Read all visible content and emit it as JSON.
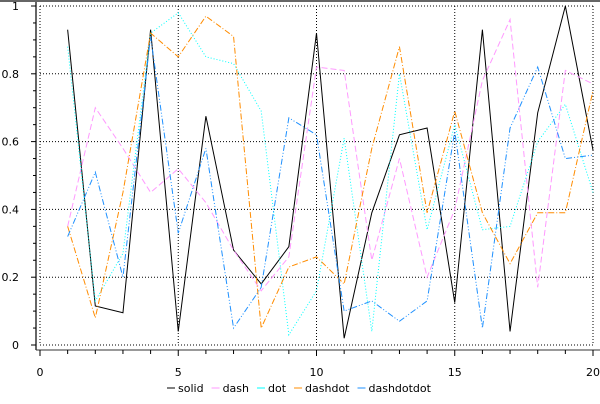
{
  "chart_data": {
    "type": "line",
    "title": "",
    "xlabel": "",
    "ylabel": "",
    "xlim": [
      0,
      20
    ],
    "ylim": [
      0,
      1
    ],
    "xticks": [
      0,
      5,
      10,
      15,
      20
    ],
    "yticks": [
      0,
      0.2,
      0.4,
      0.6,
      0.8,
      1
    ],
    "xtick_labels": [
      "0",
      "5",
      "10",
      "15",
      "20"
    ],
    "ytick_labels": [
      "0",
      "0.2",
      "0.4",
      "0.6",
      "0.8",
      "1"
    ],
    "grid": true,
    "legend_position": "bottom",
    "x": [
      1,
      2,
      3,
      4,
      5,
      6,
      7,
      8,
      9,
      10,
      11,
      12,
      13,
      14,
      15,
      16,
      17,
      18,
      19,
      20
    ],
    "series": [
      {
        "name": "solid",
        "color": "#000000",
        "dash": "solid",
        "values": [
          0.93,
          0.115,
          0.095,
          0.93,
          0.04,
          0.675,
          0.28,
          0.18,
          0.29,
          0.92,
          0.02,
          0.39,
          0.62,
          0.64,
          0.125,
          0.93,
          0.04,
          0.685,
          1.0,
          0.575
        ]
      },
      {
        "name": "dash",
        "color": "#ff99ff",
        "dash": "dash",
        "values": [
          0.35,
          0.7,
          0.58,
          0.45,
          0.52,
          0.42,
          0.28,
          0.16,
          0.26,
          0.82,
          0.81,
          0.25,
          0.55,
          0.2,
          0.4,
          0.78,
          0.96,
          0.17,
          0.81,
          0.77
        ]
      },
      {
        "name": "dot",
        "color": "#00ffff",
        "dash": "dot",
        "values": [
          0.88,
          0.13,
          0.27,
          0.92,
          0.98,
          0.85,
          0.83,
          0.69,
          0.03,
          0.16,
          0.61,
          0.04,
          0.8,
          0.34,
          0.65,
          0.34,
          0.35,
          0.6,
          0.71,
          0.45
        ]
      },
      {
        "name": "dashdot",
        "color": "#ff8c00",
        "dash": "dashdot",
        "values": [
          0.35,
          0.08,
          0.45,
          0.92,
          0.85,
          0.97,
          0.91,
          0.05,
          0.23,
          0.26,
          0.18,
          0.58,
          0.88,
          0.39,
          0.69,
          0.39,
          0.24,
          0.39,
          0.39,
          0.75
        ]
      },
      {
        "name": "dashdotdot",
        "color": "#1e90ff",
        "dash": "dashdotdot",
        "values": [
          0.32,
          0.51,
          0.2,
          0.91,
          0.33,
          0.58,
          0.05,
          0.17,
          0.67,
          0.62,
          0.1,
          0.13,
          0.07,
          0.13,
          0.63,
          0.05,
          0.64,
          0.82,
          0.55,
          0.56
        ]
      }
    ]
  }
}
